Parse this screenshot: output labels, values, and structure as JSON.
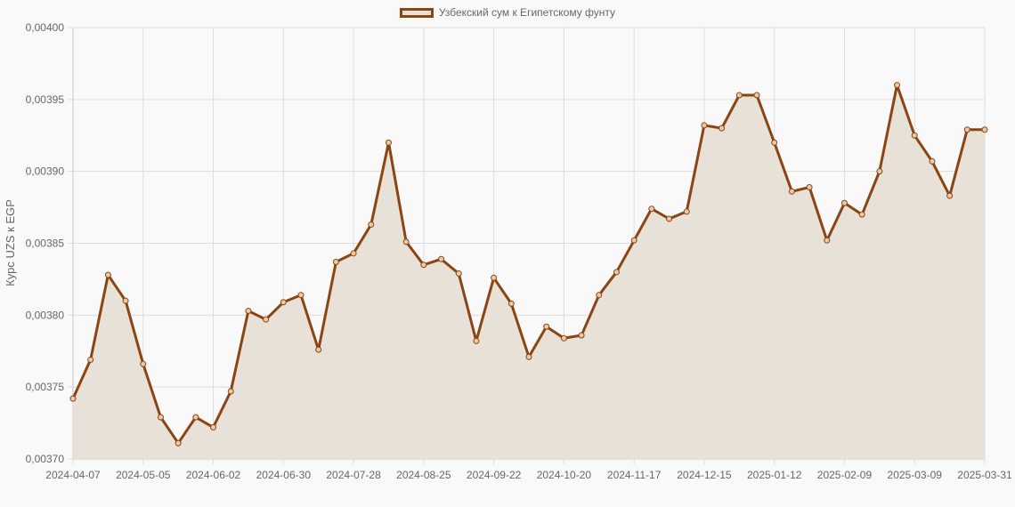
{
  "chart_data": {
    "type": "line",
    "title": "",
    "legend": [
      "Узбекский сум к Египетскому фунту"
    ],
    "legend_position": "top",
    "xlabel": "",
    "ylabel": "Курс UZS к EGP",
    "ylim": [
      0.0037,
      0.004
    ],
    "y_ticks": [
      "0,00370",
      "0,00375",
      "0,00380",
      "0,00385",
      "0,00390",
      "0,00395",
      "0,00400"
    ],
    "x_tick_labels": [
      "2024-04-07",
      "2024-05-05",
      "2024-06-02",
      "2024-06-30",
      "2024-07-28",
      "2024-08-25",
      "2024-09-22",
      "2024-10-20",
      "2024-11-17",
      "2024-12-15",
      "2025-01-12",
      "2025-02-09",
      "2025-03-09",
      "2025-03-31"
    ],
    "grid": true,
    "fill": true,
    "colors": {
      "line": "#8B4513",
      "fill": "#e8e1d8",
      "grid": "#dddddd"
    },
    "series": [
      {
        "name": "Узбекский сум к Египетскому фунту",
        "values": [
          0.003742,
          0.003769,
          0.003828,
          0.00381,
          0.003766,
          0.003729,
          0.003711,
          0.003729,
          0.003722,
          0.003747,
          0.003803,
          0.003797,
          0.003809,
          0.003814,
          0.003776,
          0.003837,
          0.003843,
          0.003863,
          0.00392,
          0.003851,
          0.003835,
          0.003839,
          0.003829,
          0.003782,
          0.003826,
          0.003808,
          0.003771,
          0.003792,
          0.003784,
          0.003786,
          0.003814,
          0.00383,
          0.003852,
          0.003874,
          0.003867,
          0.003872,
          0.003932,
          0.00393,
          0.003953,
          0.003953,
          0.00392,
          0.003886,
          0.003889,
          0.003852,
          0.003878,
          0.00387,
          0.0039,
          0.00396,
          0.003925,
          0.003907,
          0.003883,
          0.003929,
          0.003929
        ]
      }
    ]
  }
}
